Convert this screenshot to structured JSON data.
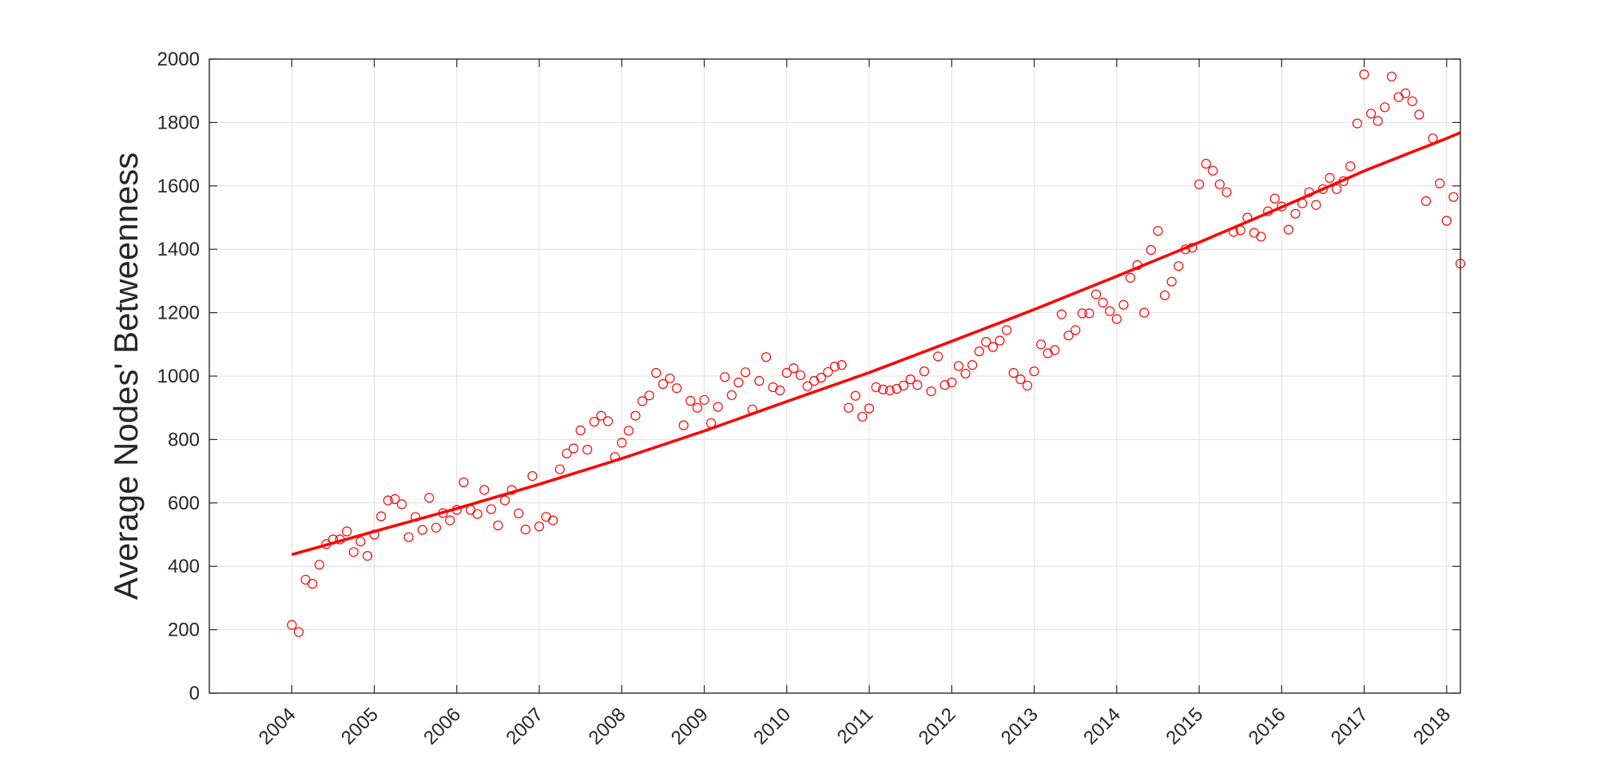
{
  "chart_data": {
    "type": "scatter",
    "title": "",
    "xlabel": "",
    "ylabel": "Average Nodes' Betweenness",
    "x_ticks": [
      "2004",
      "2005",
      "2006",
      "2007",
      "2008",
      "2009",
      "2010",
      "2011",
      "2012",
      "2013",
      "2014",
      "2015",
      "2016",
      "2017",
      "2018"
    ],
    "y_ticks": [
      "0",
      "200",
      "400",
      "600",
      "800",
      "1000",
      "1200",
      "1400",
      "1600",
      "1800",
      "2000"
    ],
    "xlim": [
      "2003-01",
      "2018-03"
    ],
    "ylim": [
      0,
      2000
    ],
    "grid": true,
    "colors": {
      "points": "#ff0000",
      "fit": "#ff0000",
      "axis": "#262626",
      "grid": "#dfdfdf"
    },
    "series": [
      {
        "kind": "points",
        "marker": "open-circle",
        "x": [
          "2004-01",
          "2004-02",
          "2004-03",
          "2004-04",
          "2004-05",
          "2004-06",
          "2004-07",
          "2004-08",
          "2004-09",
          "2004-10",
          "2004-11",
          "2004-12",
          "2005-01",
          "2005-02",
          "2005-03",
          "2005-04",
          "2005-05",
          "2005-06",
          "2005-07",
          "2005-08",
          "2005-09",
          "2005-10",
          "2005-11",
          "2005-12",
          "2006-01",
          "2006-02",
          "2006-03",
          "2006-04",
          "2006-05",
          "2006-06",
          "2006-07",
          "2006-08",
          "2006-09",
          "2006-10",
          "2006-11",
          "2006-12",
          "2007-01",
          "2007-02",
          "2007-03",
          "2007-04",
          "2007-05",
          "2007-06",
          "2007-07",
          "2007-08",
          "2007-09",
          "2007-10",
          "2007-11",
          "2007-12",
          "2008-01",
          "2008-02",
          "2008-03",
          "2008-04",
          "2008-05",
          "2008-06",
          "2008-07",
          "2008-08",
          "2008-09",
          "2008-10",
          "2008-11",
          "2008-12",
          "2009-01",
          "2009-02",
          "2009-03",
          "2009-04",
          "2009-05",
          "2009-06",
          "2009-07",
          "2009-08",
          "2009-09",
          "2009-10",
          "2009-11",
          "2009-12",
          "2010-01",
          "2010-02",
          "2010-03",
          "2010-04",
          "2010-05",
          "2010-06",
          "2010-07",
          "2010-08",
          "2010-09",
          "2010-10",
          "2010-11",
          "2010-12",
          "2011-01",
          "2011-02",
          "2011-03",
          "2011-04",
          "2011-05",
          "2011-06",
          "2011-07",
          "2011-08",
          "2011-09",
          "2011-10",
          "2011-11",
          "2011-12",
          "2012-01",
          "2012-02",
          "2012-03",
          "2012-04",
          "2012-05",
          "2012-06",
          "2012-07",
          "2012-08",
          "2012-09",
          "2012-10",
          "2012-11",
          "2012-12",
          "2013-01",
          "2013-02",
          "2013-03",
          "2013-04",
          "2013-05",
          "2013-06",
          "2013-07",
          "2013-08",
          "2013-09",
          "2013-10",
          "2013-11",
          "2013-12",
          "2014-01",
          "2014-02",
          "2014-03",
          "2014-04",
          "2014-05",
          "2014-06",
          "2014-07",
          "2014-08",
          "2014-09",
          "2014-10",
          "2014-11",
          "2014-12",
          "2015-01",
          "2015-02",
          "2015-03",
          "2015-04",
          "2015-05",
          "2015-06",
          "2015-07",
          "2015-08",
          "2015-09",
          "2015-10",
          "2015-11",
          "2015-12",
          "2016-01",
          "2016-02",
          "2016-03",
          "2016-04",
          "2016-05",
          "2016-06",
          "2016-07",
          "2016-08",
          "2016-09",
          "2016-10",
          "2016-11",
          "2016-12",
          "2017-01",
          "2017-02",
          "2017-03",
          "2017-04",
          "2017-05",
          "2017-06",
          "2017-07",
          "2017-08",
          "2017-09",
          "2017-10",
          "2017-11",
          "2017-12",
          "2018-01",
          "2018-02",
          "2018-03"
        ],
        "y": [
          215,
          193,
          358,
          345,
          405,
          470,
          485,
          485,
          510,
          445,
          478,
          433,
          500,
          558,
          608,
          612,
          596,
          492,
          556,
          515,
          616,
          522,
          568,
          545,
          578,
          665,
          578,
          565,
          641,
          580,
          529,
          608,
          641,
          567,
          516,
          685,
          526,
          556,
          545,
          706,
          756,
          772,
          829,
          768,
          856,
          875,
          858,
          745,
          790,
          828,
          875,
          921,
          939,
          1010,
          975,
          993,
          962,
          845,
          922,
          900,
          925,
          852,
          903,
          997,
          940,
          980,
          1012,
          895,
          985,
          1060,
          965,
          955,
          1010,
          1025,
          1003,
          968,
          985,
          995,
          1013,
          1030,
          1035,
          900,
          938,
          872,
          898,
          965,
          958,
          955,
          960,
          970,
          990,
          972,
          1015,
          952,
          1062,
          972,
          980,
          1032,
          1008,
          1035,
          1078,
          1108,
          1092,
          1112,
          1145,
          1010,
          990,
          970,
          1015,
          1100,
          1072,
          1082,
          1195,
          1128,
          1145,
          1198,
          1198,
          1258,
          1232,
          1205,
          1180,
          1225,
          1310,
          1350,
          1200,
          1398,
          1458,
          1255,
          1298,
          1347,
          1400,
          1405,
          1605,
          1670,
          1648,
          1605,
          1580,
          1455,
          1460,
          1500,
          1452,
          1440,
          1520,
          1560,
          1535,
          1462,
          1512,
          1545,
          1580,
          1540,
          1590,
          1625,
          1590,
          1615,
          1662,
          1797,
          1952,
          1828,
          1805,
          1848,
          1945,
          1880,
          1892,
          1867,
          1825,
          1552,
          1750,
          1608,
          1490,
          1565,
          1355
        ]
      },
      {
        "kind": "trend-line",
        "x": [
          "2004-01",
          "2005-01",
          "2006-01",
          "2007-01",
          "2008-01",
          "2009-01",
          "2010-01",
          "2011-01",
          "2012-01",
          "2013-01",
          "2014-01",
          "2015-01",
          "2016-01",
          "2017-01",
          "2018-01",
          "2018-03"
        ],
        "y": [
          437,
          510,
          582,
          659,
          740,
          827,
          920,
          1011,
          1110,
          1210,
          1315,
          1422,
          1533,
          1647,
          1750,
          1768
        ]
      }
    ]
  }
}
